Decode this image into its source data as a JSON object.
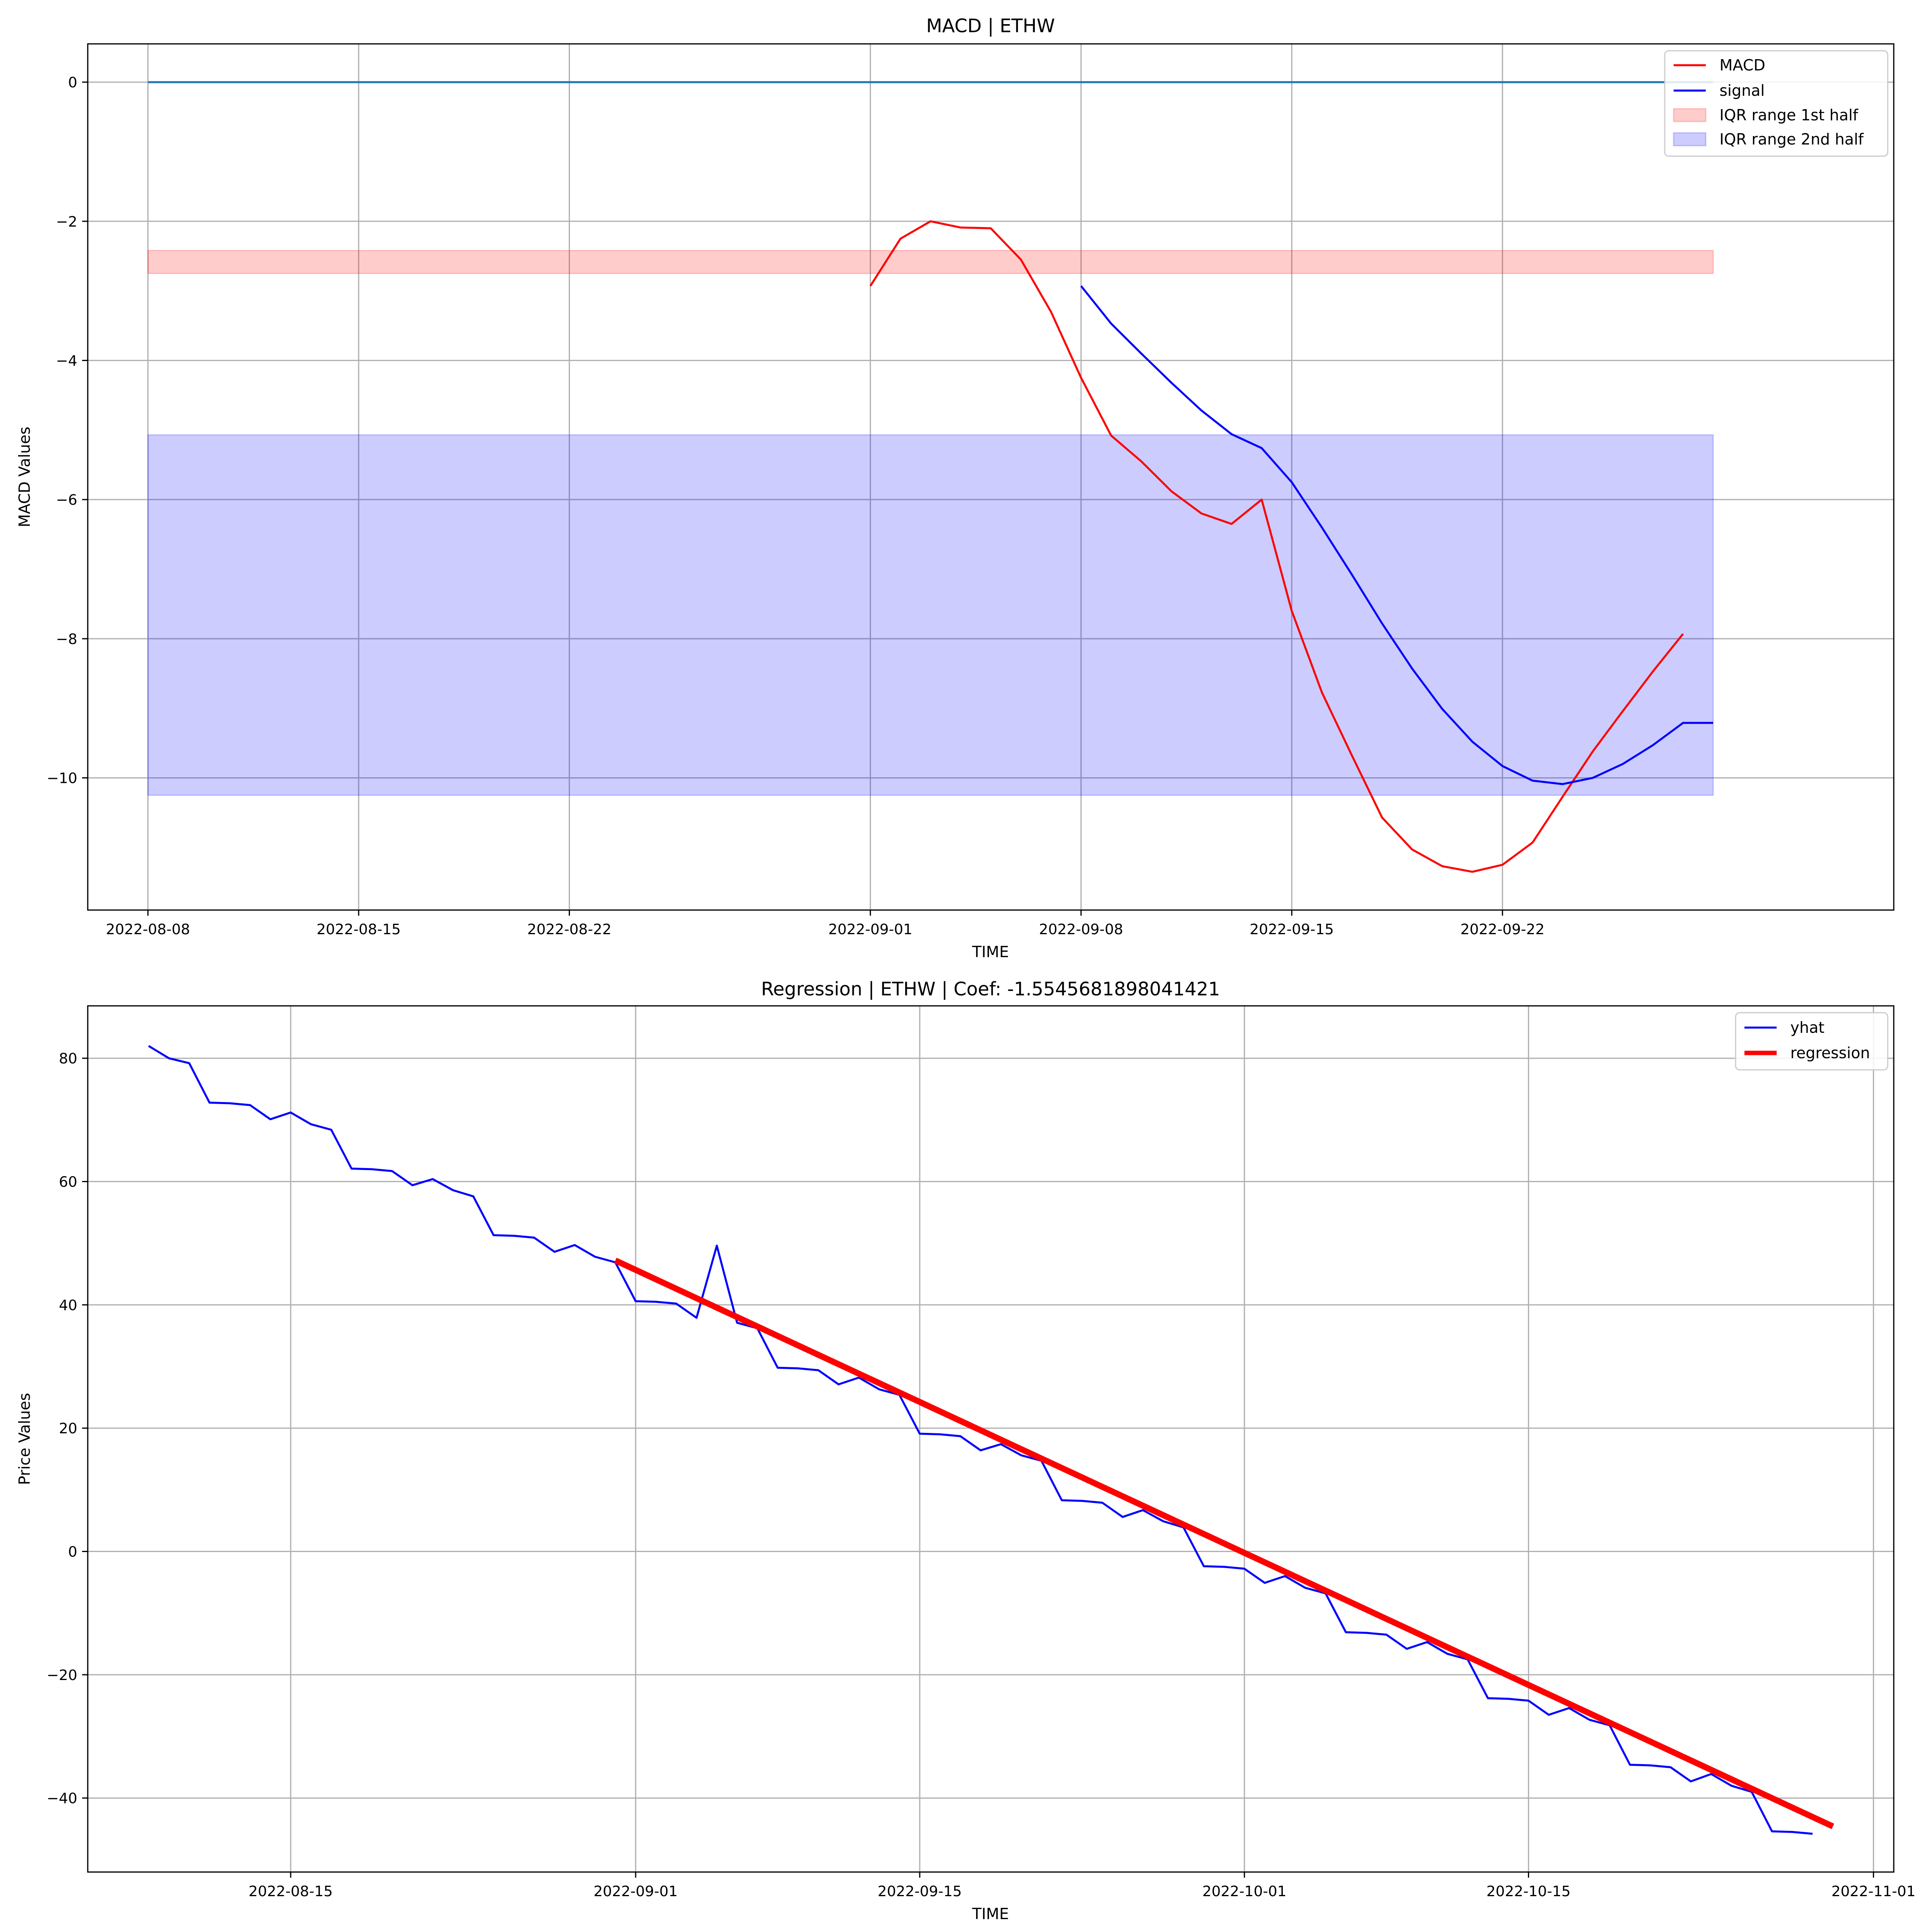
{
  "chart_data": [
    {
      "type": "line",
      "title": "MACD | ETHW",
      "xlabel": "TIME",
      "ylabel": "MACD Values",
      "x_is_date": true,
      "xlim": [
        "2022-08-06",
        "2022-10-05"
      ],
      "ylim": [
        -11.9,
        0.55
      ],
      "x_ticks": [
        "2022-08-08",
        "2022-08-15",
        "2022-08-22",
        "2022-09-01",
        "2022-09-08",
        "2022-09-15",
        "2022-09-22"
      ],
      "y_ticks": [
        0,
        -2,
        -4,
        -6,
        -8,
        -10
      ],
      "y_tick_labels": [
        "0",
        "−2",
        "−4",
        "−6",
        "−8",
        "−10"
      ],
      "grid": true,
      "legend_position": "top-right",
      "zero_line": {
        "x": [
          "2022-08-08",
          "2022-09-29"
        ],
        "y": [
          0,
          0
        ],
        "color": "#1f77b4"
      },
      "bands": [
        {
          "name": "IQR range 1st half",
          "x": [
            "2022-08-08",
            "2022-09-29"
          ],
          "y_low": -2.75,
          "y_high": -2.42,
          "color": "#ff0000",
          "alpha": 0.2
        },
        {
          "name": "IQR range 2nd half",
          "x": [
            "2022-08-08",
            "2022-09-29"
          ],
          "y_low": -10.25,
          "y_high": -5.07,
          "color": "#0000ff",
          "alpha": 0.2
        }
      ],
      "series": [
        {
          "name": "MACD",
          "color": "#ff0000",
          "x": [
            "2022-09-01",
            "2022-09-02",
            "2022-09-03",
            "2022-09-04",
            "2022-09-05",
            "2022-09-06",
            "2022-09-07",
            "2022-09-08",
            "2022-09-09",
            "2022-09-10",
            "2022-09-11",
            "2022-09-12",
            "2022-09-13",
            "2022-09-14",
            "2022-09-15",
            "2022-09-16",
            "2022-09-17",
            "2022-09-18",
            "2022-09-19",
            "2022-09-20",
            "2022-09-21",
            "2022-09-22",
            "2022-09-23",
            "2022-09-24",
            "2022-09-25",
            "2022-09-26",
            "2022-09-27",
            "2022-09-28",
            "2022-09-29"
          ],
          "y": [
            -2.93,
            -2.25,
            -2.0,
            -2.09,
            -2.1,
            -2.55,
            -3.3,
            -4.25,
            -5.08,
            -5.45,
            -5.88,
            -6.2,
            -6.35,
            -6.0,
            -7.6,
            -8.77,
            -9.68,
            -10.57,
            -11.03,
            -11.27,
            -11.35,
            -11.25,
            -10.93,
            -10.27,
            -9.62,
            -9.04,
            -8.47,
            -7.93,
            -7.45
          ],
          "trim_last": 1
        },
        {
          "name": "signal",
          "color": "#0000ff",
          "x": [
            "2022-09-08",
            "2022-09-09",
            "2022-09-10",
            "2022-09-11",
            "2022-09-12",
            "2022-09-13",
            "2022-09-14",
            "2022-09-15",
            "2022-09-16",
            "2022-09-17",
            "2022-09-18",
            "2022-09-19",
            "2022-09-20",
            "2022-09-21",
            "2022-09-22",
            "2022-09-23",
            "2022-09-24",
            "2022-09-25",
            "2022-09-26",
            "2022-09-27",
            "2022-09-28",
            "2022-09-29"
          ],
          "y": [
            -2.93,
            -3.47,
            -3.9,
            -4.32,
            -4.72,
            -5.06,
            -5.26,
            -5.75,
            -6.4,
            -7.08,
            -7.78,
            -8.43,
            -9.01,
            -9.48,
            -9.83,
            -10.04,
            -10.09,
            -10.0,
            -9.8,
            -9.53,
            -9.21,
            -9.21
          ]
        }
      ]
    },
    {
      "type": "line",
      "title": "Regression | ETHW | Coef: -1.5545681898041421",
      "xlabel": "TIME",
      "ylabel": "Price Values",
      "x_is_date": true,
      "xlim": [
        "2022-08-05",
        "2022-11-02"
      ],
      "ylim": [
        -52,
        88.5
      ],
      "x_ticks": [
        "2022-08-15",
        "2022-09-01",
        "2022-09-15",
        "2022-10-01",
        "2022-10-15",
        "2022-11-01"
      ],
      "y_ticks": [
        80,
        60,
        40,
        20,
        0,
        -20,
        -40
      ],
      "y_tick_labels": [
        "80",
        "60",
        "40",
        "20",
        "0",
        "−20",
        "−40"
      ],
      "grid": true,
      "legend_position": "top-right",
      "series": [
        {
          "name": "yhat",
          "color": "#0000ff",
          "x_start": "2022-08-08",
          "y": [
            82.0,
            80.0,
            79.2,
            72.8,
            72.7,
            72.4,
            70.1,
            71.2,
            69.3,
            68.4,
            62.1,
            62.0,
            61.7,
            59.4,
            60.4,
            58.6,
            57.6,
            51.3,
            51.2,
            50.9,
            48.6,
            49.7,
            47.8,
            46.9,
            40.6,
            40.5,
            40.2,
            37.9,
            49.6,
            37.1,
            36.2,
            29.8,
            29.7,
            29.4,
            27.1,
            28.2,
            26.3,
            25.4,
            19.1,
            19.0,
            18.7,
            16.4,
            17.4,
            15.6,
            14.7,
            8.3,
            8.2,
            7.9,
            5.6,
            6.7,
            4.9,
            3.9,
            -2.4,
            -2.5,
            -2.8,
            -5.1,
            -4.0,
            -5.9,
            -6.8,
            -13.1,
            -13.2,
            -13.5,
            -15.8,
            -14.7,
            -16.6,
            -17.5,
            -23.8,
            -23.9,
            -24.2,
            -26.5,
            -25.4,
            -27.3,
            -28.2,
            -34.6,
            -34.7,
            -35.0,
            -37.3,
            -36.1,
            -38.0,
            -39.0,
            -45.4,
            -45.5,
            -45.8
          ]
        },
        {
          "name": "regression",
          "color": "#ff0000",
          "line_width": 3,
          "x": [
            "2022-08-31",
            "2022-10-30"
          ],
          "y": [
            47.2,
            -44.6
          ]
        }
      ]
    }
  ]
}
